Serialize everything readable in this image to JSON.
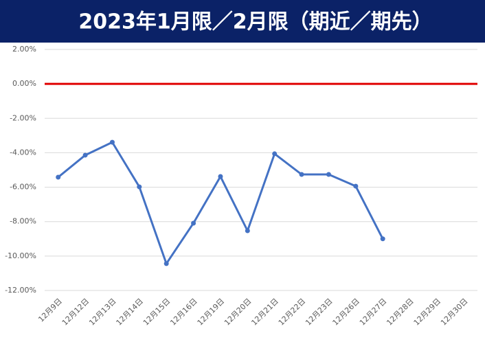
{
  "chart_data": {
    "type": "line",
    "title": "2023年1月限／2月限（期近／期先）",
    "categories": [
      "12月9日",
      "12月12日",
      "12月13日",
      "12月14日",
      "12月15日",
      "12月16日",
      "12月19日",
      "12月20日",
      "12月21日",
      "12月22日",
      "12月23日",
      "12月26日",
      "12月27日",
      "12月28日",
      "12月29日",
      "12月30日"
    ],
    "series": [
      {
        "color": "#4472c4",
        "values": [
          -5.42,
          -4.14,
          -3.39,
          -5.98,
          -10.44,
          -8.09,
          -5.38,
          -8.53,
          -4.06,
          -5.26,
          -5.26,
          -5.94,
          -9.0,
          null,
          null,
          null
        ]
      }
    ],
    "reference_line": {
      "value": 0,
      "color": "#e00000"
    },
    "ylim": [
      -12,
      2
    ],
    "yticks": [
      {
        "value": -12,
        "label": "-12.00%"
      },
      {
        "value": -10,
        "label": "-10.00%"
      },
      {
        "value": -8,
        "label": "-8.00%"
      },
      {
        "value": -6,
        "label": "-6.00%"
      },
      {
        "value": -4,
        "label": "-4.00%"
      },
      {
        "value": -2,
        "label": "-2.00%"
      },
      {
        "value": 0,
        "label": "0.00%"
      },
      {
        "value": 2,
        "label": "2.00%"
      }
    ],
    "grid": true,
    "title_background": "#0b2267"
  }
}
